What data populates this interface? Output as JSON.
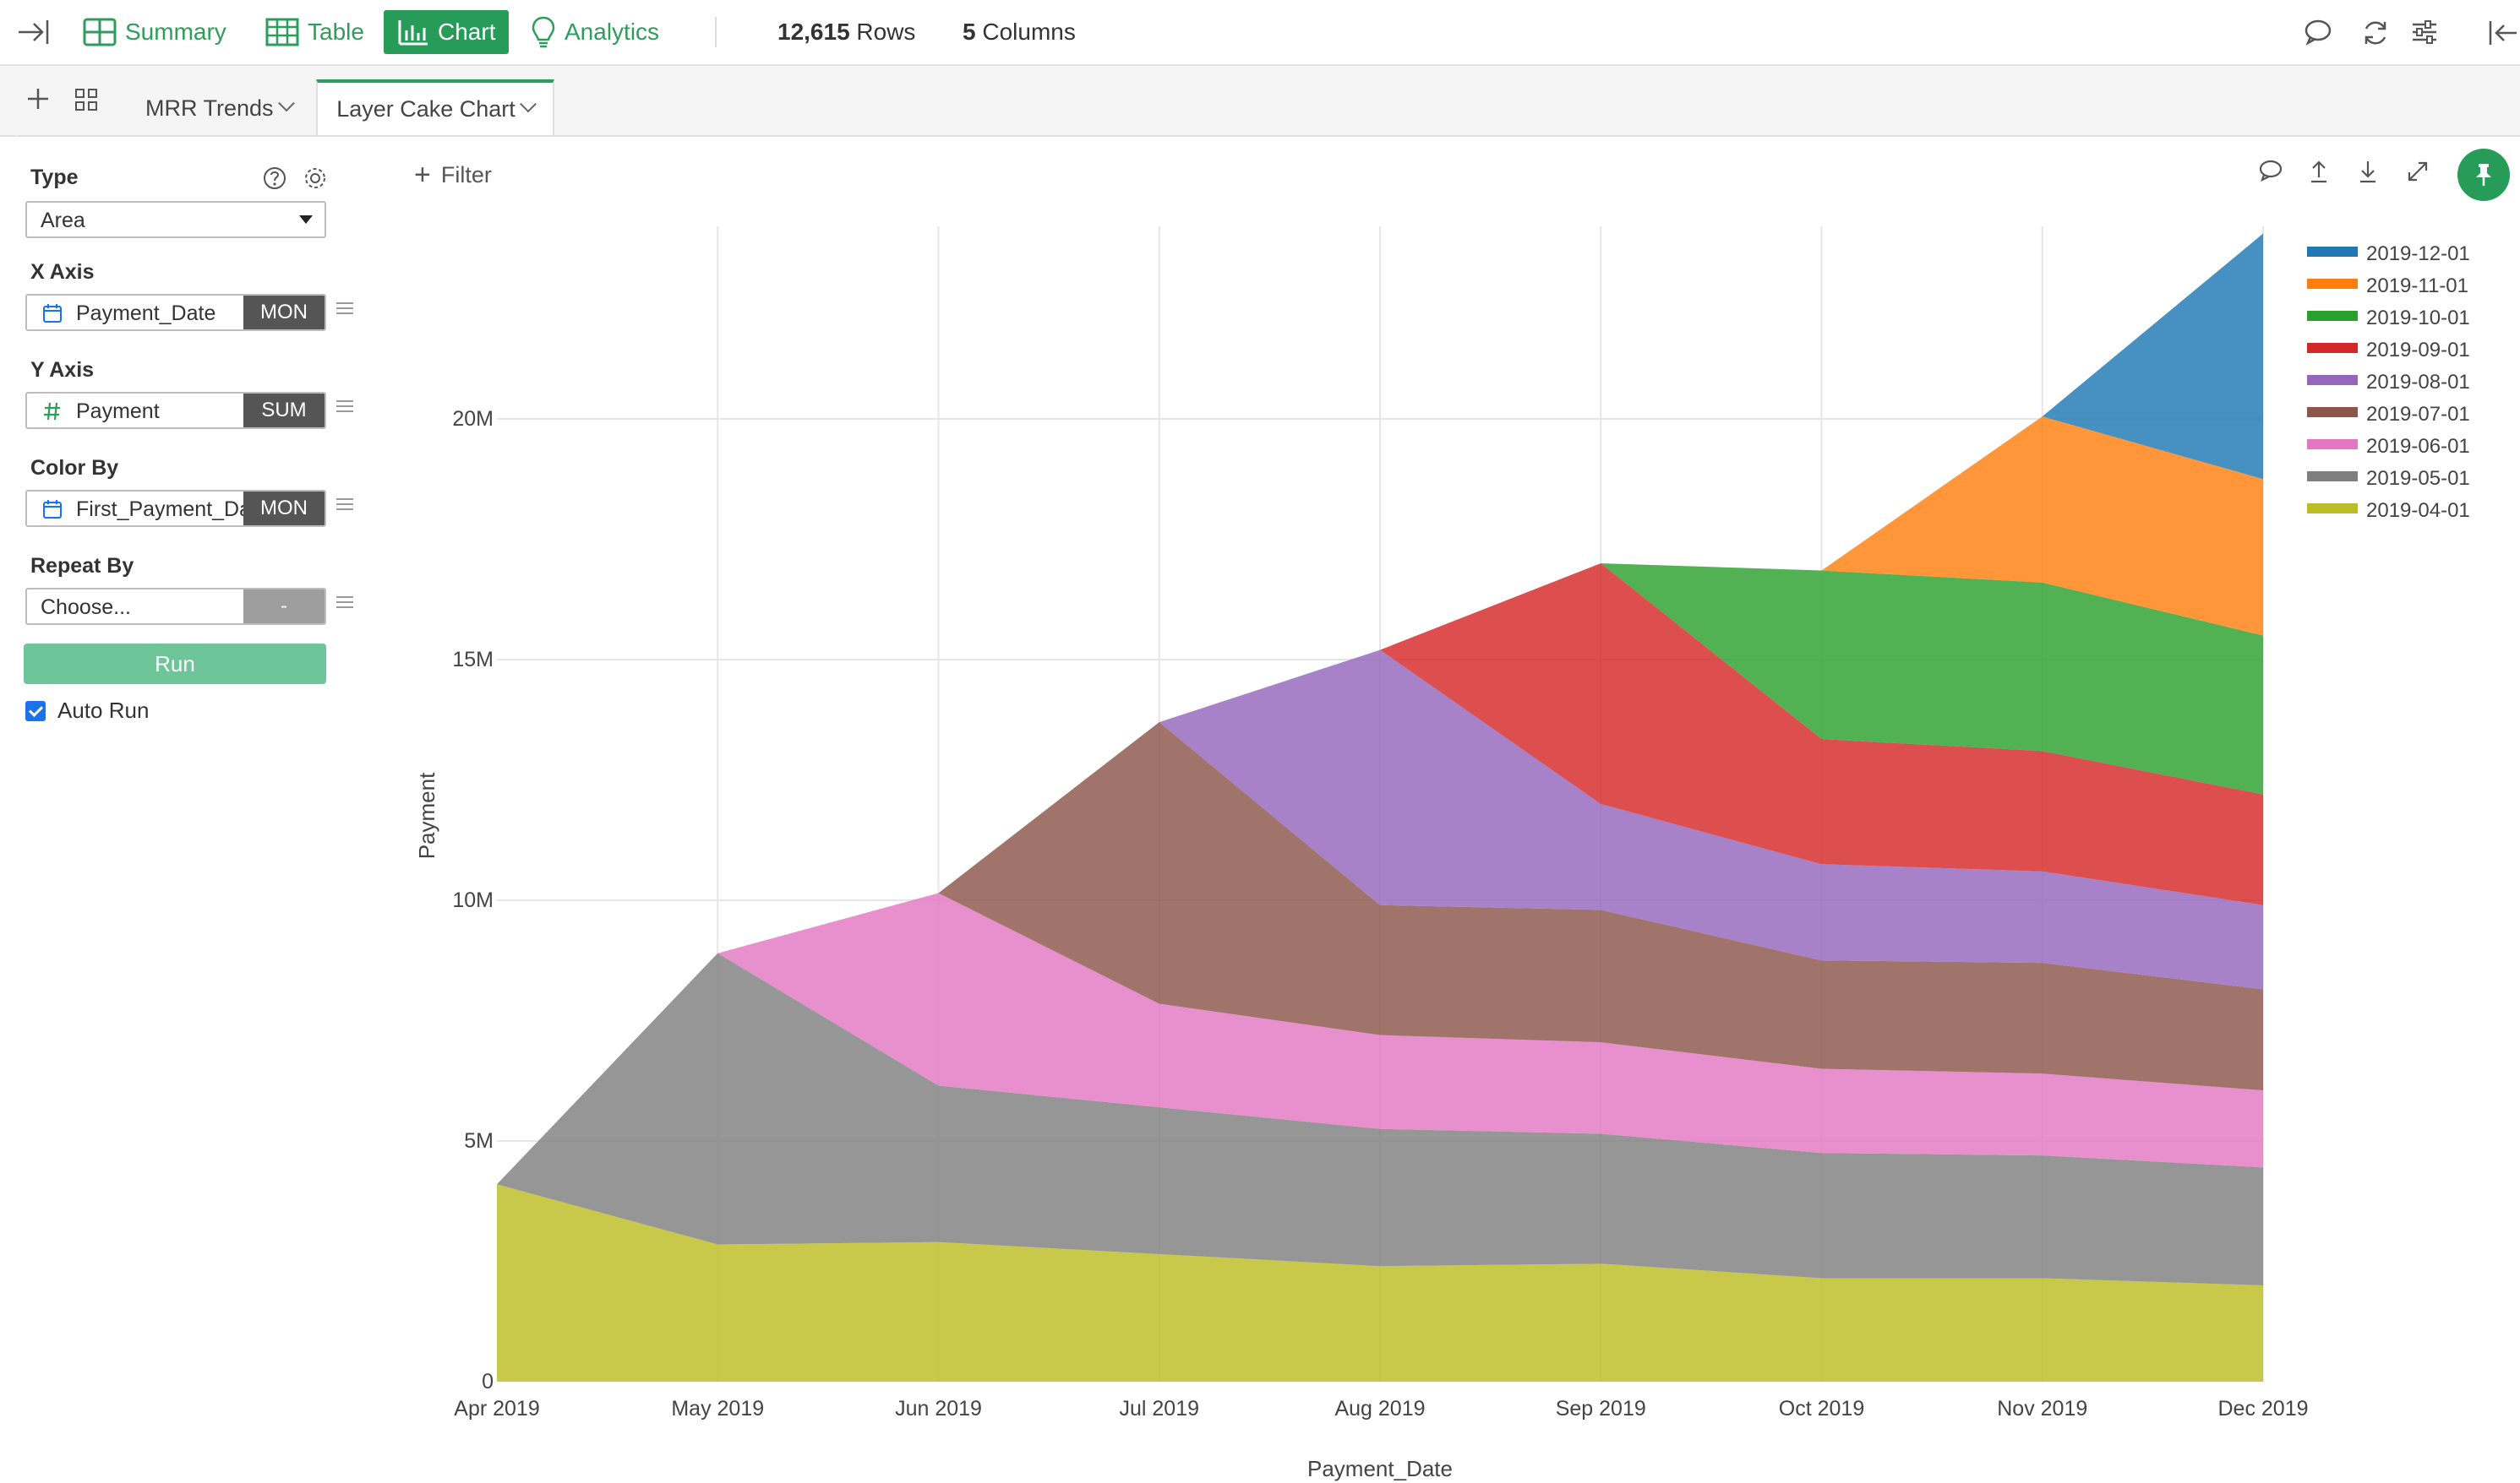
{
  "toolbar": {
    "nav": [
      {
        "id": "summary",
        "label": "Summary",
        "icon": "grid-icon"
      },
      {
        "id": "table",
        "label": "Table",
        "icon": "table-icon"
      },
      {
        "id": "chart",
        "label": "Chart",
        "icon": "bar-chart-icon",
        "active": true
      },
      {
        "id": "analytics",
        "label": "Analytics",
        "icon": "lightbulb-icon"
      }
    ],
    "rows_count": "12,615",
    "rows_label": "Rows",
    "columns_count": "5",
    "columns_label": "Columns",
    "accent_color": "#269c58"
  },
  "tabs": {
    "items": [
      {
        "label": "MRR Trends",
        "active": false
      },
      {
        "label": "Layer Cake Chart",
        "active": true
      }
    ]
  },
  "panel": {
    "type_label": "Type",
    "type_value": "Area",
    "x_axis_label": "X Axis",
    "x_axis_field": "Payment_Date",
    "x_axis_agg": "MON",
    "y_axis_label": "Y Axis",
    "y_axis_field": "Payment",
    "y_axis_agg": "SUM",
    "color_by_label": "Color By",
    "color_by_field": "First_Payment_Date",
    "color_by_agg": "MON",
    "repeat_by_label": "Repeat By",
    "repeat_by_field": "Choose...",
    "repeat_by_agg": "-",
    "run_label": "Run",
    "auto_run_label": "Auto Run",
    "auto_run_checked": true
  },
  "chart_header": {
    "filter_label": "Filter"
  },
  "chart_data": {
    "type": "area",
    "stacked": true,
    "xlabel": "Payment_Date",
    "ylabel": "Payment",
    "x": [
      "Apr 2019",
      "May 2019",
      "Jun 2019",
      "Jul 2019",
      "Aug 2019",
      "Sep 2019",
      "Oct 2019",
      "Nov 2019",
      "Dec 2019"
    ],
    "ylim": [
      0,
      24000000
    ],
    "yticks": [
      0,
      5000000,
      10000000,
      15000000,
      20000000
    ],
    "ytick_labels": [
      "0",
      "5M",
      "10M",
      "15M",
      "20M"
    ],
    "legend_position": "right",
    "grid": true,
    "series": [
      {
        "name": "2019-04-01",
        "color": "#bcbd22",
        "values": [
          4100000,
          2850000,
          2900000,
          2650000,
          2400000,
          2450000,
          2150000,
          2150000,
          2000000
        ]
      },
      {
        "name": "2019-05-01",
        "color": "#7f7f7f",
        "values": [
          null,
          6050000,
          3250000,
          3050000,
          2850000,
          2700000,
          2600000,
          2550000,
          2450000
        ]
      },
      {
        "name": "2019-06-01",
        "color": "#e377c2",
        "values": [
          null,
          null,
          4000000,
          2150000,
          1950000,
          1900000,
          1750000,
          1700000,
          1600000
        ]
      },
      {
        "name": "2019-07-01",
        "color": "#8c564b",
        "values": [
          null,
          null,
          null,
          5850000,
          2700000,
          2750000,
          2250000,
          2300000,
          2100000
        ]
      },
      {
        "name": "2019-08-01",
        "color": "#9467bd",
        "values": [
          null,
          null,
          null,
          null,
          5300000,
          2200000,
          2000000,
          1900000,
          1750000
        ]
      },
      {
        "name": "2019-09-01",
        "color": "#d62728",
        "values": [
          null,
          null,
          null,
          null,
          null,
          5000000,
          2600000,
          2500000,
          2300000
        ]
      },
      {
        "name": "2019-10-01",
        "color": "#2ca02c",
        "values": [
          null,
          null,
          null,
          null,
          null,
          null,
          3500000,
          3500000,
          3300000
        ]
      },
      {
        "name": "2019-11-01",
        "color": "#ff7f0e",
        "values": [
          null,
          null,
          null,
          null,
          null,
          null,
          null,
          3450000,
          3250000
        ]
      },
      {
        "name": "2019-12-01",
        "color": "#1f77b4",
        "values": [
          null,
          null,
          null,
          null,
          null,
          null,
          null,
          null,
          5100000
        ]
      }
    ]
  }
}
